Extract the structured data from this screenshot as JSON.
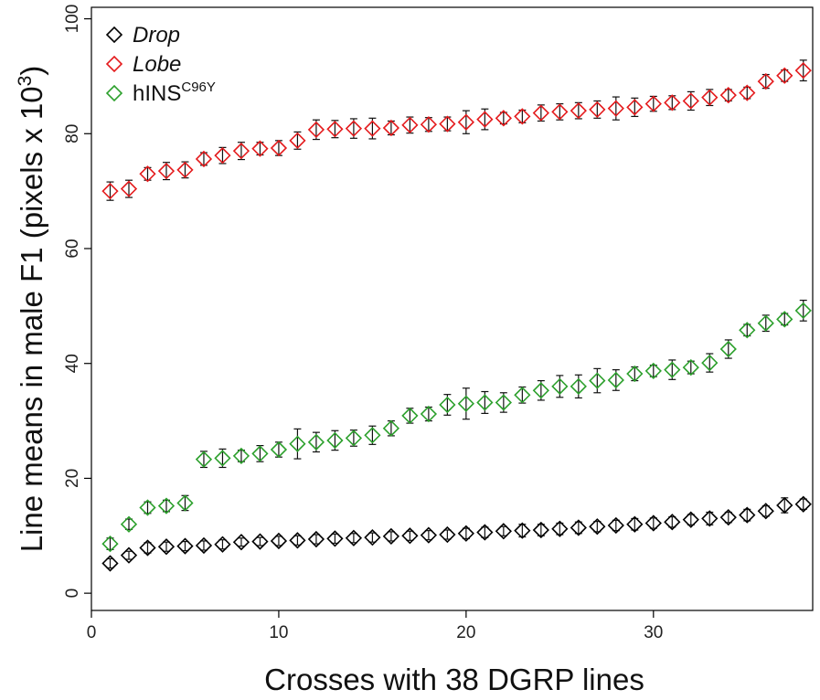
{
  "chart_data": {
    "type": "scatter",
    "title": "",
    "xlabel": "Crosses with 38 DGRP lines",
    "ylabel": "Line means in male F1 (pixels  x  10",
    "ylabel_sup": "3",
    "ylabel_close": ")",
    "xlim": [
      0,
      38.5
    ],
    "ylim": [
      -3,
      102
    ],
    "x_ticks": [
      0,
      10,
      20,
      30
    ],
    "x_tick_labels": [
      "0",
      "10",
      "20",
      "30"
    ],
    "y_ticks": [
      0,
      20,
      40,
      60,
      80,
      100
    ],
    "y_tick_labels": [
      "0",
      "20",
      "40",
      "60",
      "80",
      "100"
    ],
    "grid": false,
    "legend_position": "top-left",
    "x": [
      1,
      2,
      3,
      4,
      5,
      6,
      7,
      8,
      9,
      10,
      11,
      12,
      13,
      14,
      15,
      16,
      17,
      18,
      19,
      20,
      21,
      22,
      23,
      24,
      25,
      26,
      27,
      28,
      29,
      30,
      31,
      32,
      33,
      34,
      35,
      36,
      37,
      38
    ],
    "series": [
      {
        "name": "Drop",
        "name_sup": "",
        "italic": true,
        "color": "#000000",
        "values": [
          5.2,
          6.6,
          7.9,
          8.1,
          8.2,
          8.3,
          8.5,
          8.9,
          9.0,
          9.1,
          9.2,
          9.4,
          9.5,
          9.6,
          9.7,
          9.9,
          10.0,
          10.1,
          10.2,
          10.4,
          10.6,
          10.8,
          10.9,
          11.0,
          11.2,
          11.4,
          11.6,
          11.8,
          12.0,
          12.2,
          12.4,
          12.8,
          13.0,
          13.2,
          13.6,
          14.3,
          15.3,
          15.5
        ],
        "errors": [
          0.8,
          0.7,
          0.9,
          0.8,
          0.8,
          0.8,
          0.8,
          0.7,
          0.7,
          0.8,
          0.8,
          0.8,
          0.8,
          0.8,
          0.8,
          0.8,
          0.8,
          0.8,
          0.8,
          0.9,
          0.9,
          0.8,
          1.1,
          1.0,
          1.0,
          1.0,
          0.9,
          0.9,
          1.0,
          0.9,
          0.9,
          0.9,
          1.1,
          0.9,
          1.0,
          0.9,
          1.3,
          0.9
        ]
      },
      {
        "name": "Lobe",
        "name_sup": "",
        "italic": true,
        "color": "#e41a1c",
        "values": [
          70.0,
          70.4,
          73.0,
          73.5,
          73.7,
          75.6,
          76.2,
          77.0,
          77.4,
          77.5,
          78.8,
          80.7,
          80.8,
          80.9,
          80.9,
          81.0,
          81.5,
          81.6,
          81.7,
          82.0,
          82.5,
          82.7,
          83.0,
          83.6,
          83.8,
          84.0,
          84.2,
          84.4,
          84.6,
          85.2,
          85.4,
          85.7,
          86.3,
          86.7,
          87.1,
          89.1,
          90.1,
          91.0
        ],
        "errors": [
          1.6,
          1.5,
          1.1,
          1.5,
          1.4,
          1.1,
          1.4,
          1.5,
          1.1,
          1.3,
          1.5,
          1.7,
          1.5,
          1.7,
          1.8,
          1.2,
          1.4,
          1.2,
          1.2,
          2.0,
          1.8,
          1.0,
          1.1,
          1.4,
          1.4,
          1.4,
          1.5,
          2.0,
          1.6,
          1.3,
          1.2,
          1.6,
          1.4,
          1.0,
          1.0,
          1.2,
          1.0,
          1.8
        ]
      },
      {
        "name": "hINS",
        "name_sup": "C96Y",
        "italic": false,
        "color": "#2ca02c",
        "values": [
          8.6,
          12.0,
          14.9,
          15.2,
          15.7,
          23.3,
          23.5,
          23.9,
          24.3,
          25.0,
          26.0,
          26.3,
          26.6,
          27.0,
          27.5,
          28.7,
          30.9,
          31.2,
          32.8,
          33.0,
          33.2,
          33.2,
          34.5,
          35.3,
          36.0,
          36.0,
          37.0,
          37.1,
          38.2,
          38.7,
          38.9,
          39.3,
          40.1,
          42.5,
          45.8,
          47.0,
          47.7,
          49.2
        ],
        "errors": [
          1.0,
          0.9,
          1.0,
          1.0,
          1.3,
          1.4,
          1.6,
          1.0,
          1.4,
          1.3,
          2.6,
          1.7,
          1.7,
          1.4,
          1.6,
          1.3,
          1.3,
          1.2,
          1.8,
          2.7,
          1.9,
          1.7,
          1.4,
          1.7,
          1.9,
          2.0,
          2.1,
          1.8,
          1.2,
          1.0,
          1.7,
          1.1,
          1.6,
          1.6,
          1.0,
          1.4,
          1.0,
          1.8
        ]
      }
    ]
  }
}
